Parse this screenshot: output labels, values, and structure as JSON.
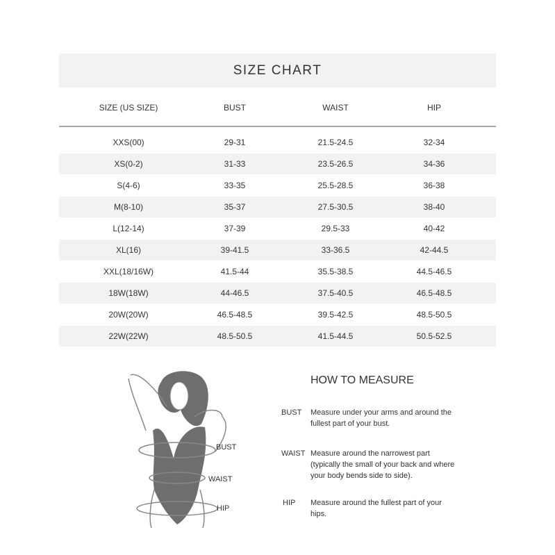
{
  "title": "SIZE CHART",
  "columns": [
    "SIZE (US SIZE)",
    "BUST",
    "WAIST",
    "HIP"
  ],
  "rows": [
    [
      "XXS(00)",
      "29-31",
      "21.5-24.5",
      "32-34"
    ],
    [
      "XS(0-2)",
      "31-33",
      "23.5-26.5",
      "34-36"
    ],
    [
      "S(4-6)",
      "33-35",
      "25.5-28.5",
      "36-38"
    ],
    [
      "M(8-10)",
      "35-37",
      "27.5-30.5",
      "38-40"
    ],
    [
      "L(12-14)",
      "37-39",
      "29.5-33",
      "40-42"
    ],
    [
      "XL(16)",
      "39-41.5",
      "33-36.5",
      "42-44.5"
    ],
    [
      "XXL(18/16W)",
      "41.5-44",
      "35.5-38.5",
      "44.5-46.5"
    ],
    [
      "18W(18W)",
      "44-46.5",
      "37.5-40.5",
      "46.5-48.5"
    ],
    [
      "20W(20W)",
      "46.5-48.5",
      "39.5-42.5",
      "48.5-50.5"
    ],
    [
      "22W(22W)",
      "48.5-50.5",
      "41.5-44.5",
      "50.5-52.5"
    ]
  ],
  "figure_labels": {
    "bust": "BUST",
    "waist": "WAIST",
    "hip": "HIP"
  },
  "how_to_measure": {
    "title": "HOW TO MEASURE",
    "items": [
      {
        "label": "BUST",
        "text": "Measure under your arms and around the fullest part of your bust."
      },
      {
        "label": "WAIST",
        "text": "Measure around the narrowest part (typically the small of your back and where your body bends side to side)."
      },
      {
        "label": "HIP",
        "text": "Measure around the fullest part of your hips."
      }
    ]
  }
}
